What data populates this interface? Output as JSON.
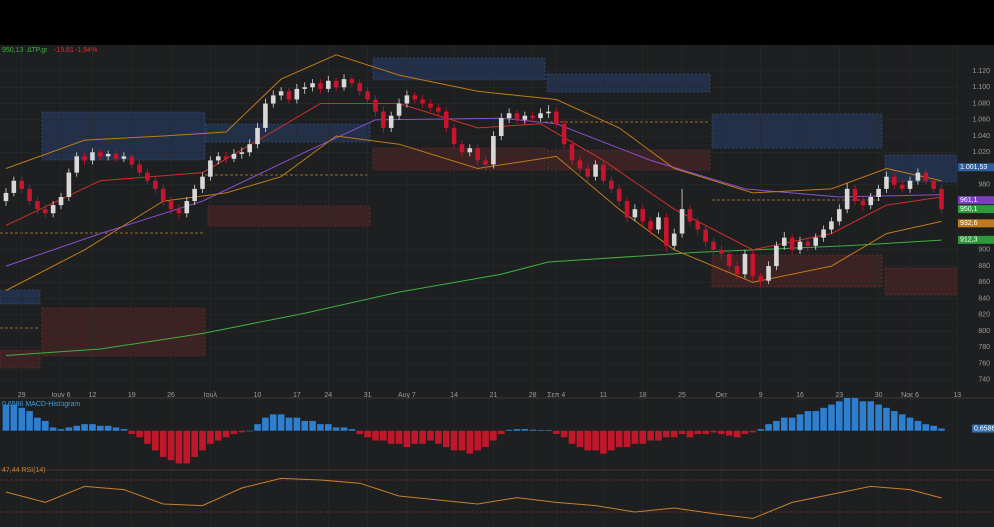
{
  "chart_data": {
    "type": "candlestick",
    "header": {
      "price": "950,13",
      "symbol": "ΔΤΡ.gr",
      "change": "-18,81",
      "change_pct": "-1,94%"
    },
    "xlim": [
      -0.76,
      121.1
    ],
    "ylim": [
      730,
      1152
    ],
    "yticks": [
      {
        "value": 1120,
        "label": "1.120"
      },
      {
        "value": 1100,
        "label": "1.100"
      },
      {
        "value": 1080,
        "label": "1.080"
      },
      {
        "value": 1060,
        "label": "1.060"
      },
      {
        "value": 1040,
        "label": "1.040"
      },
      {
        "value": 1020,
        "label": "1.020"
      },
      980,
      900,
      880,
      860,
      840,
      820,
      800,
      780,
      760,
      740
    ],
    "xticks": [
      {
        "value": 2,
        "label": "29"
      },
      {
        "value": 7,
        "label": "Ιουν 6"
      },
      {
        "value": 11,
        "label": "12"
      },
      {
        "value": 16,
        "label": "19"
      },
      {
        "value": 21,
        "label": "26"
      },
      {
        "value": 26,
        "label": "Ιουλ"
      },
      {
        "value": 32,
        "label": "10"
      },
      {
        "value": 37,
        "label": "17"
      },
      {
        "value": 41,
        "label": "24"
      },
      {
        "value": 46,
        "label": "31"
      },
      {
        "value": 51,
        "label": "Αυγ 7"
      },
      {
        "value": 57,
        "label": "14"
      },
      {
        "value": 62,
        "label": "21"
      },
      {
        "value": 67,
        "label": "28"
      },
      {
        "value": 70,
        "label": "Σεπ 4"
      },
      {
        "value": 76,
        "label": "11"
      },
      {
        "value": 81,
        "label": "18"
      },
      {
        "value": 86,
        "label": "25"
      },
      {
        "value": 91,
        "label": "Οκτ"
      },
      {
        "value": 96,
        "label": "9"
      },
      {
        "value": 101,
        "label": "16"
      },
      {
        "value": 106,
        "label": "23"
      },
      {
        "value": 111,
        "label": "30"
      },
      {
        "value": 115,
        "label": "Νοε 6"
      },
      {
        "value": 121,
        "label": "13"
      }
    ],
    "grid": true,
    "up_color": "#d8d8d8",
    "down_color": "#c8142c",
    "ohlc": [
      [
        960,
        976,
        954,
        970
      ],
      [
        970,
        990,
        966,
        985
      ],
      [
        985,
        990,
        970,
        975
      ],
      [
        975,
        980,
        955,
        960
      ],
      [
        960,
        965,
        944,
        950
      ],
      [
        950,
        956,
        940,
        945
      ],
      [
        945,
        960,
        940,
        955
      ],
      [
        955,
        970,
        950,
        965
      ],
      [
        965,
        1000,
        960,
        995
      ],
      [
        995,
        1020,
        990,
        1015
      ],
      [
        1015,
        1020,
        1004,
        1010
      ],
      [
        1010,
        1025,
        1005,
        1020
      ],
      [
        1020,
        1024,
        1010,
        1015
      ],
      [
        1015,
        1022,
        1010,
        1018
      ],
      [
        1018,
        1022,
        1008,
        1012
      ],
      [
        1012,
        1020,
        1008,
        1015
      ],
      [
        1015,
        1018,
        1000,
        1005
      ],
      [
        1005,
        1010,
        990,
        995
      ],
      [
        995,
        1000,
        980,
        985
      ],
      [
        985,
        990,
        970,
        975
      ],
      [
        975,
        980,
        955,
        960
      ],
      [
        960,
        965,
        944,
        950
      ],
      [
        950,
        956,
        938,
        945
      ],
      [
        945,
        965,
        940,
        960
      ],
      [
        960,
        980,
        955,
        975
      ],
      [
        975,
        995,
        970,
        990
      ],
      [
        990,
        1015,
        985,
        1010
      ],
      [
        1010,
        1020,
        1005,
        1015
      ],
      [
        1015,
        1020,
        1006,
        1012
      ],
      [
        1012,
        1024,
        1008,
        1018
      ],
      [
        1018,
        1026,
        1012,
        1020
      ],
      [
        1020,
        1036,
        1015,
        1030
      ],
      [
        1030,
        1056,
        1025,
        1050
      ],
      [
        1050,
        1086,
        1045,
        1080
      ],
      [
        1080,
        1096,
        1075,
        1090
      ],
      [
        1090,
        1100,
        1084,
        1095
      ],
      [
        1095,
        1100,
        1080,
        1085
      ],
      [
        1085,
        1104,
        1080,
        1098
      ],
      [
        1098,
        1106,
        1092,
        1100
      ],
      [
        1100,
        1110,
        1095,
        1105
      ],
      [
        1105,
        1110,
        1092,
        1098
      ],
      [
        1098,
        1114,
        1094,
        1108
      ],
      [
        1108,
        1112,
        1095,
        1100
      ],
      [
        1100,
        1116,
        1096,
        1110
      ],
      [
        1110,
        1115,
        1100,
        1105
      ],
      [
        1105,
        1110,
        1090,
        1095
      ],
      [
        1095,
        1100,
        1080,
        1085
      ],
      [
        1085,
        1090,
        1064,
        1070
      ],
      [
        1070,
        1076,
        1044,
        1050
      ],
      [
        1050,
        1070,
        1045,
        1065
      ],
      [
        1065,
        1086,
        1060,
        1080
      ],
      [
        1080,
        1096,
        1075,
        1090
      ],
      [
        1090,
        1094,
        1080,
        1085
      ],
      [
        1085,
        1090,
        1075,
        1080
      ],
      [
        1080,
        1085,
        1070,
        1075
      ],
      [
        1075,
        1080,
        1064,
        1070
      ],
      [
        1070,
        1075,
        1044,
        1050
      ],
      [
        1050,
        1055,
        1024,
        1030
      ],
      [
        1030,
        1035,
        1014,
        1020
      ],
      [
        1020,
        1030,
        1015,
        1025
      ],
      [
        1025,
        1030,
        1004,
        1010
      ],
      [
        1010,
        1015,
        998,
        1005
      ],
      [
        1005,
        1046,
        1000,
        1040
      ],
      [
        1040,
        1068,
        1035,
        1062
      ],
      [
        1062,
        1074,
        1056,
        1068
      ],
      [
        1068,
        1072,
        1055,
        1060
      ],
      [
        1060,
        1070,
        1055,
        1065
      ],
      [
        1065,
        1070,
        1056,
        1062
      ],
      [
        1062,
        1074,
        1058,
        1068
      ],
      [
        1068,
        1078,
        1062,
        1070
      ],
      [
        1070,
        1075,
        1050,
        1055
      ],
      [
        1055,
        1060,
        1024,
        1030
      ],
      [
        1030,
        1035,
        1004,
        1010
      ],
      [
        1010,
        1015,
        994,
        1000
      ],
      [
        1000,
        1005,
        984,
        990
      ],
      [
        990,
        1010,
        985,
        1005
      ],
      [
        1005,
        1010,
        980,
        985
      ],
      [
        985,
        990,
        970,
        975
      ],
      [
        975,
        980,
        954,
        960
      ],
      [
        960,
        965,
        934,
        940
      ],
      [
        940,
        956,
        935,
        950
      ],
      [
        950,
        955,
        930,
        935
      ],
      [
        935,
        940,
        918,
        925
      ],
      [
        925,
        946,
        920,
        940
      ],
      [
        940,
        945,
        898,
        905
      ],
      [
        905,
        926,
        900,
        920
      ],
      [
        920,
        975,
        915,
        950
      ],
      [
        950,
        955,
        930,
        935
      ],
      [
        935,
        940,
        918,
        925
      ],
      [
        925,
        930,
        904,
        910
      ],
      [
        910,
        915,
        894,
        900
      ],
      [
        900,
        905,
        888,
        895
      ],
      [
        895,
        900,
        874,
        880
      ],
      [
        880,
        885,
        864,
        870
      ],
      [
        870,
        900,
        865,
        895
      ],
      [
        895,
        900,
        862,
        868
      ],
      [
        868,
        872,
        854,
        862
      ],
      [
        862,
        886,
        858,
        880
      ],
      [
        880,
        910,
        875,
        905
      ],
      [
        905,
        922,
        900,
        915
      ],
      [
        915,
        920,
        894,
        900
      ],
      [
        900,
        916,
        895,
        910
      ],
      [
        910,
        915,
        898,
        905
      ],
      [
        905,
        920,
        900,
        915
      ],
      [
        915,
        930,
        910,
        925
      ],
      [
        925,
        940,
        920,
        935
      ],
      [
        935,
        956,
        930,
        950
      ],
      [
        950,
        982,
        945,
        975
      ],
      [
        975,
        980,
        955,
        960
      ],
      [
        960,
        965,
        948,
        955
      ],
      [
        955,
        970,
        950,
        965
      ],
      [
        965,
        980,
        960,
        975
      ],
      [
        975,
        996,
        970,
        990
      ],
      [
        990,
        995,
        975,
        980
      ],
      [
        980,
        985,
        970,
        975
      ],
      [
        975,
        990,
        970,
        985
      ],
      [
        985,
        1000,
        980,
        995
      ],
      [
        995,
        1000,
        980,
        985
      ],
      [
        985,
        990,
        970,
        975
      ],
      [
        975,
        980,
        945,
        950
      ]
    ],
    "overlays": [
      {
        "color": "#3cb043",
        "x": [
          0,
          12,
          25,
          38,
          50,
          63,
          69,
          88,
          107,
          119
        ],
        "values": [
          770,
          778,
          797,
          822,
          848,
          870,
          885,
          897,
          905,
          912
        ]
      },
      {
        "color": "#8a4fd0",
        "x": [
          0,
          12,
          25,
          38,
          47,
          63,
          70,
          82,
          94,
          106,
          119
        ],
        "values": [
          880,
          920,
          960,
          1020,
          1060,
          1062,
          1055,
          1010,
          975,
          965,
          968
        ]
      },
      {
        "color": "#d0302a",
        "x": [
          0,
          12,
          25,
          33,
          40,
          50,
          60,
          68,
          76,
          85,
          95,
          105,
          112,
          119
        ],
        "values": [
          930,
          985,
          995,
          1040,
          1080,
          1080,
          1050,
          1055,
          1010,
          950,
          900,
          920,
          955,
          965
        ]
      },
      {
        "color": "#c07a1a",
        "x": [
          0,
          10,
          20,
          28,
          35,
          42,
          50,
          60,
          70,
          78,
          85,
          95,
          105,
          112,
          119
        ],
        "values": [
          1000,
          1035,
          1040,
          1045,
          1110,
          1140,
          1115,
          1095,
          1085,
          1050,
          1000,
          970,
          975,
          1000,
          985
        ]
      },
      {
        "color": "#c07a1a",
        "x": [
          0,
          10,
          20,
          28,
          35,
          42,
          50,
          60,
          70,
          78,
          85,
          95,
          105,
          112,
          119
        ],
        "values": [
          850,
          900,
          960,
          970,
          990,
          1040,
          1030,
          1000,
          1015,
          950,
          900,
          860,
          880,
          920,
          935
        ]
      }
    ],
    "price_tags": [
      {
        "label": "1.001,53",
        "value": 1001.53,
        "color": "#2d5fa0"
      },
      {
        "label": "961,1",
        "value": 961.1,
        "color": "#7a3fc0"
      },
      {
        "label": "950,1",
        "value": 950.1,
        "color": "#2f9a3a"
      },
      {
        "label": "932,6",
        "value": 932.6,
        "color": "#c07a1a"
      },
      {
        "label": "912,3",
        "value": 912.3,
        "color": "#2f9a3a"
      }
    ],
    "macd": {
      "label": "0,6586 MACD-Histogram",
      "last_label": "0,6586",
      "ylim": [
        -12,
        10
      ],
      "pos_color": "#2f7fd0",
      "neg_color": "#c0182a",
      "values": [
        8,
        8,
        7,
        6,
        4,
        3,
        1,
        0.5,
        1,
        1.5,
        2,
        2,
        1.5,
        1.5,
        1,
        0.5,
        -1,
        -2,
        -4,
        -6,
        -8,
        -9,
        -10,
        -10,
        -8,
        -6,
        -4,
        -3,
        -2,
        -1,
        -0.5,
        0,
        2,
        4,
        5,
        5,
        4,
        4,
        3,
        3,
        2,
        2,
        1,
        1,
        0.5,
        -1,
        -2,
        -3,
        -3,
        -4,
        -4,
        -5,
        -4,
        -4,
        -3,
        -4,
        -5,
        -6,
        -6,
        -7,
        -6,
        -5,
        -3,
        -1,
        0.3,
        0.5,
        0.5,
        0.3,
        0.2,
        0.2,
        -1,
        -2,
        -4,
        -5,
        -6,
        -6,
        -7,
        -6,
        -5,
        -5,
        -4,
        -4,
        -3,
        -3,
        -2,
        -2,
        -1,
        -2,
        -1,
        -1,
        -0.5,
        -1,
        -1.5,
        -2,
        -1,
        -0.5,
        0.5,
        2,
        3,
        4,
        4,
        5,
        6,
        6,
        7,
        8,
        9,
        10,
        10,
        9,
        9,
        8,
        7,
        6,
        5,
        4,
        3,
        2,
        1.5,
        0.6586
      ]
    },
    "rsi": {
      "label": "47,44 RSI(14)",
      "ylim": [
        20,
        80
      ],
      "levels": [
        70,
        30
      ],
      "color": "#c9802a",
      "x": [
        0,
        5,
        10,
        15,
        20,
        25,
        30,
        35,
        40,
        45,
        50,
        55,
        60,
        65,
        70,
        75,
        80,
        85,
        90,
        95,
        100,
        105,
        110,
        115,
        119
      ],
      "values": [
        55,
        42,
        62,
        58,
        40,
        38,
        60,
        72,
        70,
        66,
        50,
        45,
        40,
        48,
        42,
        38,
        30,
        35,
        28,
        22,
        42,
        52,
        62,
        58,
        47.44
      ]
    }
  }
}
